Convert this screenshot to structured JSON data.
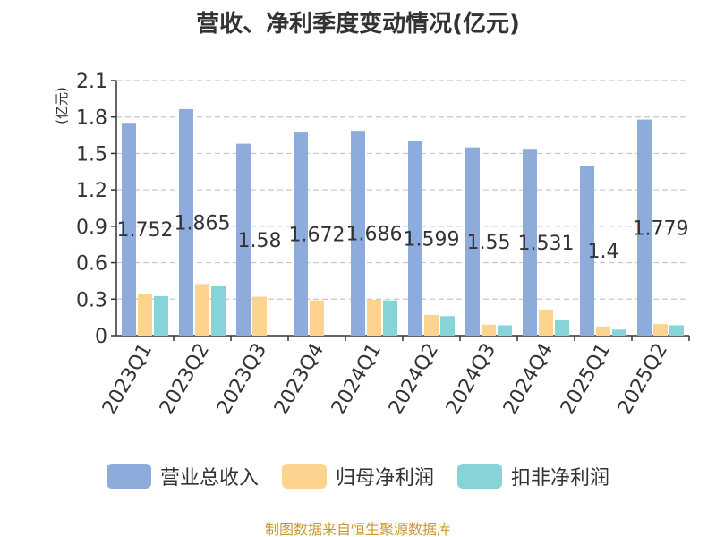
{
  "chart_data": {
    "type": "bar",
    "title": "营收、净利季度变动情况(亿元)",
    "ylabel": "(亿元)",
    "xlabel": "",
    "ylim": [
      0,
      2.1
    ],
    "yticks": [
      "0",
      "0.3",
      "0.6",
      "0.9",
      "1.2",
      "1.5",
      "1.8",
      "2.1"
    ],
    "grid": true,
    "legend_position": "bottom",
    "categories": [
      "2023Q1",
      "2023Q2",
      "2023Q3",
      "2023Q4",
      "2024Q1",
      "2024Q2",
      "2024Q3",
      "2024Q4",
      "2025Q1",
      "2025Q2"
    ],
    "series": [
      {
        "name": "营业总收入",
        "color": "#8eacdb",
        "values": [
          1.752,
          1.865,
          1.58,
          1.672,
          1.686,
          1.599,
          1.55,
          1.531,
          1.4,
          1.779
        ],
        "labels": [
          "1.752",
          "1.865",
          "1.58",
          "1.672",
          "1.686",
          "1.599",
          "1.55",
          "1.531",
          "1.4",
          "1.779"
        ]
      },
      {
        "name": "归母净利润",
        "color": "#fcd48f",
        "values": [
          0.34,
          0.425,
          0.32,
          0.29,
          0.295,
          0.17,
          0.09,
          0.215,
          0.075,
          0.095
        ]
      },
      {
        "name": "扣非净利润",
        "color": "#86d4d7",
        "values": [
          0.325,
          0.41,
          0.0,
          0.0,
          0.29,
          0.16,
          0.085,
          0.125,
          0.05,
          0.085
        ]
      }
    ]
  },
  "source": "制图数据来自恒生聚源数据库"
}
